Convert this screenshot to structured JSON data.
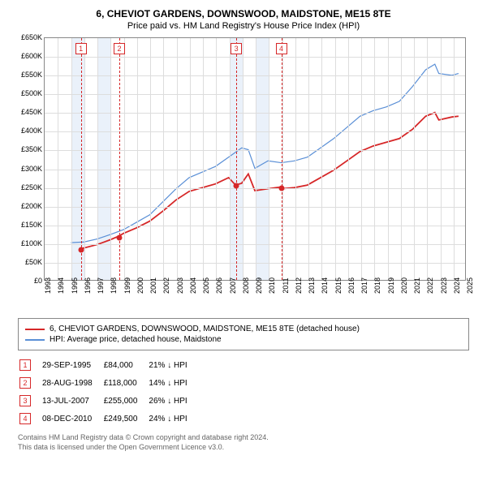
{
  "title": "6, CHEVIOT GARDENS, DOWNSWOOD, MAIDSTONE, ME15 8TE",
  "subtitle": "Price paid vs. HM Land Registry's House Price Index (HPI)",
  "chart": {
    "type": "line",
    "background_color": "#ffffff",
    "grid_color": "#dddddd",
    "border_color": "#888888",
    "x": {
      "min": 1993,
      "max": 2025,
      "step": 1,
      "label_fontsize": 9
    },
    "y": {
      "min": 0,
      "max": 650000,
      "step": 50000,
      "prefix": "£",
      "suffix": "K",
      "divisor": 1000,
      "label_fontsize": 9
    },
    "bands": [
      {
        "from": 1995,
        "to": 1996,
        "color": "#eaf1fa"
      },
      {
        "from": 1997,
        "to": 1998,
        "color": "#eaf1fa"
      },
      {
        "from": 2007,
        "to": 2008,
        "color": "#eaf1fa"
      },
      {
        "from": 2009,
        "to": 2010,
        "color": "#eaf1fa"
      }
    ],
    "event_lines": [
      {
        "n": 1,
        "x": 1995.75,
        "color": "#d62728"
      },
      {
        "n": 2,
        "x": 1998.66,
        "color": "#d62728"
      },
      {
        "n": 3,
        "x": 2007.53,
        "color": "#d62728"
      },
      {
        "n": 4,
        "x": 2010.94,
        "color": "#d62728"
      }
    ],
    "series": [
      {
        "name": "6, CHEVIOT GARDENS, DOWNSWOOD, MAIDSTONE, ME15 8TE (detached house)",
        "color": "#d62728",
        "width": 1.8,
        "points_marker": true,
        "marker_color": "#d62728",
        "data": [
          [
            1995.75,
            84000
          ],
          [
            1996,
            86000
          ],
          [
            1997,
            95000
          ],
          [
            1998,
            108000
          ],
          [
            1998.66,
            118000
          ],
          [
            1999,
            125000
          ],
          [
            2000,
            140000
          ],
          [
            2001,
            158000
          ],
          [
            2002,
            185000
          ],
          [
            2003,
            215000
          ],
          [
            2004,
            238000
          ],
          [
            2005,
            248000
          ],
          [
            2006,
            258000
          ],
          [
            2007,
            275000
          ],
          [
            2007.53,
            255000
          ],
          [
            2008,
            260000
          ],
          [
            2008.5,
            285000
          ],
          [
            2009,
            240000
          ],
          [
            2010,
            245000
          ],
          [
            2010.94,
            249500
          ],
          [
            2011,
            245000
          ],
          [
            2012,
            248000
          ],
          [
            2013,
            255000
          ],
          [
            2014,
            275000
          ],
          [
            2015,
            295000
          ],
          [
            2016,
            320000
          ],
          [
            2017,
            345000
          ],
          [
            2018,
            360000
          ],
          [
            2019,
            370000
          ],
          [
            2020,
            380000
          ],
          [
            2021,
            405000
          ],
          [
            2022,
            440000
          ],
          [
            2022.7,
            450000
          ],
          [
            2023,
            430000
          ],
          [
            2024,
            438000
          ],
          [
            2024.5,
            440000
          ]
        ],
        "event_points": [
          {
            "x": 1995.75,
            "y": 84000
          },
          {
            "x": 1998.66,
            "y": 118000
          },
          {
            "x": 2007.53,
            "y": 255000
          },
          {
            "x": 2010.94,
            "y": 249500
          }
        ]
      },
      {
        "name": "HPI: Average price, detached house, Maidstone",
        "color": "#5a8fd6",
        "width": 1.2,
        "data": [
          [
            1995,
            100000
          ],
          [
            1996,
            102000
          ],
          [
            1997,
            110000
          ],
          [
            1998,
            122000
          ],
          [
            1999,
            135000
          ],
          [
            2000,
            155000
          ],
          [
            2001,
            175000
          ],
          [
            2002,
            210000
          ],
          [
            2003,
            245000
          ],
          [
            2004,
            275000
          ],
          [
            2005,
            290000
          ],
          [
            2006,
            305000
          ],
          [
            2007,
            330000
          ],
          [
            2008,
            355000
          ],
          [
            2008.5,
            350000
          ],
          [
            2009,
            300000
          ],
          [
            2010,
            320000
          ],
          [
            2011,
            315000
          ],
          [
            2012,
            320000
          ],
          [
            2013,
            330000
          ],
          [
            2014,
            355000
          ],
          [
            2015,
            380000
          ],
          [
            2016,
            410000
          ],
          [
            2017,
            440000
          ],
          [
            2018,
            455000
          ],
          [
            2019,
            465000
          ],
          [
            2020,
            480000
          ],
          [
            2021,
            520000
          ],
          [
            2022,
            565000
          ],
          [
            2022.7,
            580000
          ],
          [
            2023,
            555000
          ],
          [
            2024,
            550000
          ],
          [
            2024.5,
            555000
          ]
        ]
      }
    ]
  },
  "legend": {
    "items": [
      {
        "color": "#d62728",
        "label": "6, CHEVIOT GARDENS, DOWNSWOOD, MAIDSTONE, ME15 8TE (detached house)"
      },
      {
        "color": "#5a8fd6",
        "label": "HPI: Average price, detached house, Maidstone"
      }
    ]
  },
  "events": [
    {
      "n": "1",
      "date": "29-SEP-1995",
      "price": "£84,000",
      "delta": "21% ↓ HPI",
      "color": "#d62728"
    },
    {
      "n": "2",
      "date": "28-AUG-1998",
      "price": "£118,000",
      "delta": "14% ↓ HPI",
      "color": "#d62728"
    },
    {
      "n": "3",
      "date": "13-JUL-2007",
      "price": "£255,000",
      "delta": "26% ↓ HPI",
      "color": "#d62728"
    },
    {
      "n": "4",
      "date": "08-DEC-2010",
      "price": "£249,500",
      "delta": "24% ↓ HPI",
      "color": "#d62728"
    }
  ],
  "footnote1": "Contains HM Land Registry data © Crown copyright and database right 2024.",
  "footnote2": "This data is licensed under the Open Government Licence v3.0."
}
